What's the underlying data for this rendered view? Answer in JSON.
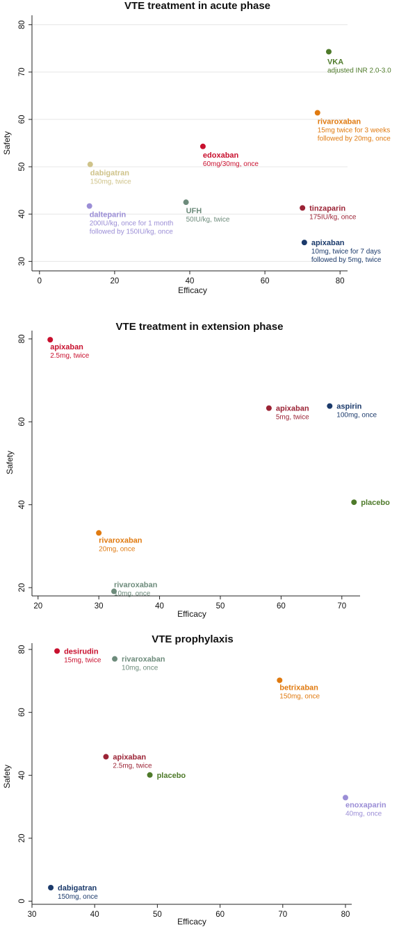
{
  "chart_data": [
    {
      "type": "scatter",
      "title": "VTE treatment in acute phase",
      "xlabel": "Efficacy",
      "ylabel": "Safety",
      "xlim": [
        -2,
        82
      ],
      "ylim": [
        28,
        82
      ],
      "xticks": [
        0,
        20,
        40,
        60,
        80
      ],
      "yticks": [
        30,
        40,
        50,
        60,
        70,
        80
      ],
      "grid": true,
      "points": [
        {
          "name": "VKA",
          "dose": [
            "adjusted INR 2.0-3.0"
          ],
          "x": 77,
          "y": 74.3,
          "color": "#4e7a2a"
        },
        {
          "name": "rivaroxaban",
          "dose": [
            "15mg twice for 3 weeks",
            "followed by 20mg, once"
          ],
          "x": 74,
          "y": 61.4,
          "color": "#e07a10"
        },
        {
          "name": "edoxaban",
          "dose": [
            "60mg/30mg, once"
          ],
          "x": 43.5,
          "y": 54.3,
          "color": "#c8102e"
        },
        {
          "name": "dabigatran",
          "dose": [
            "150mg, twice"
          ],
          "x": 13.5,
          "y": 50.5,
          "color": "#cfc38a"
        },
        {
          "name": "UFH",
          "dose": [
            "50IU/kg, twice"
          ],
          "x": 39,
          "y": 42.5,
          "color": "#6d8b7b"
        },
        {
          "name": "dalteparin",
          "dose": [
            "200IU/kg, once for 1 month",
            "followed by 150IU/kg, once"
          ],
          "x": 13.3,
          "y": 41.7,
          "color": "#9b8ed6"
        },
        {
          "name": "tinzaparin",
          "dose": [
            "175IU/kg, once"
          ],
          "x": 70,
          "y": 41.3,
          "color": "#9b2335"
        },
        {
          "name": "apixaban",
          "dose": [
            "10mg, twice for 7 days",
            "followed by 5mg, twice"
          ],
          "x": 70.5,
          "y": 34.0,
          "color": "#1b3a6b"
        }
      ]
    },
    {
      "type": "scatter",
      "title": "VTE treatment in extension phase",
      "xlabel": "Efficacy",
      "ylabel": "Safety",
      "xlim": [
        19,
        73
      ],
      "ylim": [
        18,
        82
      ],
      "xticks": [
        20,
        30,
        40,
        50,
        60,
        70
      ],
      "yticks": [
        20,
        40,
        60,
        80
      ],
      "grid": false,
      "points": [
        {
          "name": "apixaban",
          "dose": [
            "2.5mg, twice"
          ],
          "x": 22,
          "y": 79.8,
          "color": "#c8102e"
        },
        {
          "name": "apixaban",
          "dose": [
            "5mg, twice"
          ],
          "x": 58,
          "y": 63.3,
          "color": "#9b2335"
        },
        {
          "name": "aspirin",
          "dose": [
            "100mg, once"
          ],
          "x": 68,
          "y": 63.8,
          "color": "#1b3a6b"
        },
        {
          "name": "placebo",
          "dose": [],
          "x": 72,
          "y": 40.6,
          "color": "#4e7a2a"
        },
        {
          "name": "rivaroxaban",
          "dose": [
            "20mg, once"
          ],
          "x": 30,
          "y": 33.2,
          "color": "#e07a10"
        },
        {
          "name": "rivaroxaban",
          "dose": [
            "10mg, once"
          ],
          "x": 32.5,
          "y": 19.1,
          "color": "#6d8b7b"
        }
      ]
    },
    {
      "type": "scatter",
      "title": "VTE prophylaxis",
      "xlabel": "Efficacy",
      "ylabel": "Safety",
      "xlim": [
        30,
        81
      ],
      "ylim": [
        -1,
        82
      ],
      "xticks": [
        30,
        40,
        50,
        60,
        70,
        80
      ],
      "yticks": [
        0,
        20,
        40,
        60,
        80
      ],
      "grid": false,
      "points": [
        {
          "name": "desirudin",
          "dose": [
            "15mg, twice"
          ],
          "x": 34,
          "y": 79.5,
          "color": "#c8102e"
        },
        {
          "name": "rivaroxaban",
          "dose": [
            "10mg, once"
          ],
          "x": 43.2,
          "y": 77.0,
          "color": "#6d8b7b"
        },
        {
          "name": "betrixaban",
          "dose": [
            "150mg, once"
          ],
          "x": 69.5,
          "y": 70.2,
          "color": "#e07a10"
        },
        {
          "name": "apixaban",
          "dose": [
            "2.5mg, twice"
          ],
          "x": 41.8,
          "y": 45.9,
          "color": "#9b2335"
        },
        {
          "name": "placebo",
          "dose": [],
          "x": 48.8,
          "y": 40.1,
          "color": "#4e7a2a"
        },
        {
          "name": "enoxaparin",
          "dose": [
            "40mg, once"
          ],
          "x": 80,
          "y": 32.9,
          "color": "#9b8ed6"
        },
        {
          "name": "dabigatran",
          "dose": [],
          "x": 33,
          "y": 4.3,
          "color": "#1b3a6b"
        },
        {
          "name": "",
          "dose": [
            "150mg, once"
          ],
          "x": 33,
          "y": 4.3,
          "color": "#1b3a6b"
        }
      ]
    }
  ]
}
